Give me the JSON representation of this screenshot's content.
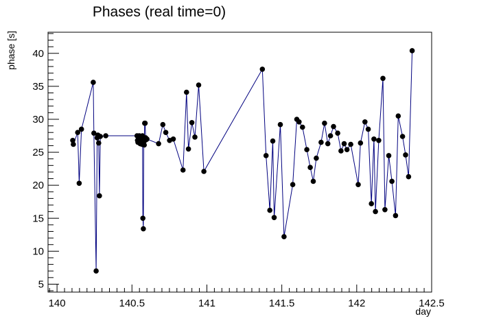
{
  "chart_data": {
    "type": "line",
    "title": "Phases (real time=0)",
    "xlabel": "day",
    "ylabel": "phase [s]",
    "xlim": [
      139.94,
      142.5
    ],
    "ylim": [
      3.8,
      43.2
    ],
    "x_ticks": [
      140,
      140.5,
      141,
      141.5,
      142,
      142.5
    ],
    "x_tick_labels": [
      "140",
      "140.5",
      "141",
      "141.5",
      "142",
      "142.5"
    ],
    "y_ticks": [
      5,
      10,
      15,
      20,
      25,
      30,
      35,
      40
    ],
    "y_tick_labels": [
      "5",
      "10",
      "15",
      "20",
      "25",
      "30",
      "35",
      "40"
    ],
    "grid": false,
    "line_color": "#00007f",
    "marker_color": "#000000",
    "series": [
      {
        "x": [
          140.105,
          140.109,
          140.138,
          140.148,
          140.163,
          140.242,
          140.246,
          140.261,
          140.268,
          140.273,
          140.278,
          140.283,
          140.289,
          140.325,
          140.534,
          140.537,
          140.54,
          140.543,
          140.546,
          140.549,
          140.552,
          140.555,
          140.558,
          140.561,
          140.564,
          140.567,
          140.57,
          140.573,
          140.576,
          140.579,
          140.582,
          140.585,
          140.588,
          140.591,
          140.594,
          140.6,
          140.678,
          140.706,
          140.726,
          140.751,
          140.776,
          140.841,
          140.864,
          140.877,
          140.9,
          140.92,
          140.945,
          140.98,
          141.37,
          141.395,
          141.42,
          141.44,
          141.449,
          141.49,
          141.515,
          141.573,
          141.6,
          141.615,
          141.638,
          141.667,
          141.69,
          141.71,
          141.73,
          141.762,
          141.785,
          141.807,
          141.825,
          141.845,
          141.873,
          141.895,
          141.916,
          141.935,
          141.96,
          142.01,
          142.025,
          142.055,
          142.077,
          142.098,
          142.115,
          142.125,
          142.147,
          142.175,
          142.188,
          142.214,
          142.235,
          142.259,
          142.277,
          142.306,
          142.326,
          142.346,
          142.37
        ],
        "y": [
          26.8,
          26.2,
          28.0,
          20.3,
          28.5,
          35.6,
          27.9,
          7.0,
          27.2,
          27.6,
          26.4,
          18.4,
          27.4,
          27.5,
          27.5,
          26.8,
          26.5,
          27.0,
          27.2,
          27.5,
          26.8,
          26.3,
          26.6,
          27.0,
          26.4,
          26.2,
          27.5,
          15.0,
          13.4,
          26.5,
          26.1,
          29.4,
          29.4,
          27.2,
          26.9,
          27.0,
          26.3,
          29.2,
          28.0,
          26.8,
          27.0,
          22.3,
          34.1,
          25.5,
          29.5,
          27.3,
          35.2,
          22.1,
          37.6,
          24.5,
          16.2,
          26.7,
          15.1,
          29.2,
          12.2,
          20.1,
          30.0,
          29.6,
          28.8,
          25.4,
          22.7,
          20.6,
          24.1,
          26.5,
          29.4,
          26.3,
          27.5,
          28.9,
          27.9,
          25.2,
          26.3,
          25.4,
          26.2,
          20.1,
          26.4,
          29.6,
          28.5,
          17.2,
          27.0,
          16.0,
          26.8,
          36.2,
          16.3,
          24.5,
          20.6,
          15.4,
          30.5,
          27.4,
          24.6,
          21.3,
          40.4
        ]
      }
    ]
  }
}
